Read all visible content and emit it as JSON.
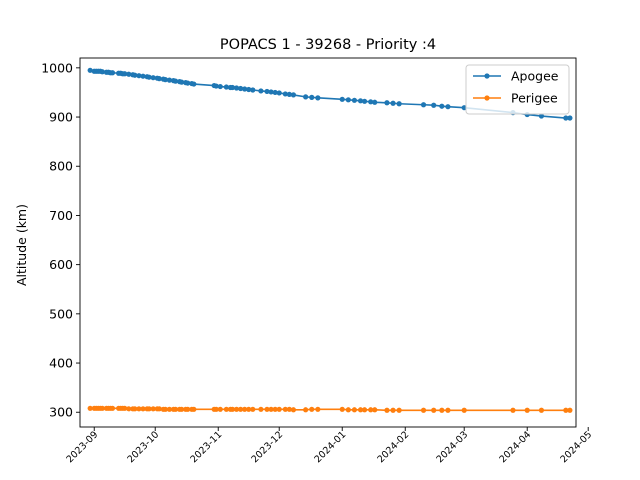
{
  "chart_data": {
    "type": "line",
    "title": "POPACS 1 - 39268 - Priority :4",
    "xlabel": "",
    "ylabel": "Altitude (km)",
    "xlim": [
      "2023-08-25",
      "2024-04-25"
    ],
    "ylim": [
      270,
      1020
    ],
    "xticks": [
      "2023-09",
      "2023-10",
      "2023-11",
      "2023-12",
      "2024-01",
      "2024-02",
      "2024-03",
      "2024-04",
      "2024-05"
    ],
    "yticks": [
      300,
      400,
      500,
      600,
      700,
      800,
      900,
      1000
    ],
    "grid": false,
    "legend": "top-right",
    "colors": {
      "Apogee": "#1f77b4",
      "Perigee": "#ff7f0e"
    },
    "marker": "circle",
    "series": [
      {
        "name": "Apogee",
        "points": [
          [
            "2023-08-30",
            995
          ],
          [
            "2023-09-01",
            993
          ],
          [
            "2023-09-02",
            993
          ],
          [
            "2023-09-03",
            993
          ],
          [
            "2023-09-04",
            993
          ],
          [
            "2023-09-05",
            992
          ],
          [
            "2023-09-07",
            991
          ],
          [
            "2023-09-08",
            991
          ],
          [
            "2023-09-09",
            990
          ],
          [
            "2023-09-10",
            990
          ],
          [
            "2023-09-13",
            989
          ],
          [
            "2023-09-14",
            989
          ],
          [
            "2023-09-15",
            988
          ],
          [
            "2023-09-16",
            988
          ],
          [
            "2023-09-18",
            987
          ],
          [
            "2023-09-20",
            986
          ],
          [
            "2023-09-21",
            985
          ],
          [
            "2023-09-23",
            984
          ],
          [
            "2023-09-25",
            983
          ],
          [
            "2023-09-27",
            982
          ],
          [
            "2023-09-28",
            981
          ],
          [
            "2023-09-30",
            980
          ],
          [
            "2023-10-02",
            979
          ],
          [
            "2023-10-03",
            978
          ],
          [
            "2023-10-05",
            977
          ],
          [
            "2023-10-06",
            976
          ],
          [
            "2023-10-08",
            975
          ],
          [
            "2023-10-10",
            974
          ],
          [
            "2023-10-11",
            973
          ],
          [
            "2023-10-13",
            972
          ],
          [
            "2023-10-14",
            971
          ],
          [
            "2023-10-16",
            970
          ],
          [
            "2023-10-17",
            969
          ],
          [
            "2023-10-19",
            968
          ],
          [
            "2023-10-20",
            967
          ],
          [
            "2023-10-30",
            964
          ],
          [
            "2023-10-31",
            963
          ],
          [
            "2023-11-02",
            962
          ],
          [
            "2023-11-05",
            961
          ],
          [
            "2023-11-07",
            960
          ],
          [
            "2023-11-08",
            960
          ],
          [
            "2023-11-10",
            959
          ],
          [
            "2023-11-12",
            958
          ],
          [
            "2023-11-14",
            957
          ],
          [
            "2023-11-16",
            956
          ],
          [
            "2023-11-18",
            955
          ],
          [
            "2023-11-22",
            953
          ],
          [
            "2023-11-25",
            952
          ],
          [
            "2023-11-27",
            951
          ],
          [
            "2023-11-29",
            950
          ],
          [
            "2023-12-01",
            949
          ],
          [
            "2023-12-04",
            947
          ],
          [
            "2023-12-06",
            946
          ],
          [
            "2023-12-08",
            945
          ],
          [
            "2023-12-14",
            941
          ],
          [
            "2023-12-17",
            940
          ],
          [
            "2023-12-20",
            939
          ],
          [
            "2024-01-01",
            936
          ],
          [
            "2024-01-04",
            935
          ],
          [
            "2024-01-07",
            934
          ],
          [
            "2024-01-10",
            933
          ],
          [
            "2024-01-12",
            932
          ],
          [
            "2024-01-15",
            931
          ],
          [
            "2024-01-17",
            930
          ],
          [
            "2024-01-23",
            929
          ],
          [
            "2024-01-26",
            928
          ],
          [
            "2024-01-29",
            927
          ],
          [
            "2024-02-10",
            925
          ],
          [
            "2024-02-15",
            924
          ],
          [
            "2024-02-19",
            922
          ],
          [
            "2024-02-22",
            921
          ],
          [
            "2024-03-01",
            919
          ],
          [
            "2024-03-25",
            909
          ],
          [
            "2024-04-01",
            905
          ],
          [
            "2024-04-08",
            902
          ],
          [
            "2024-04-20",
            898
          ],
          [
            "2024-04-22",
            898
          ]
        ]
      },
      {
        "name": "Perigee",
        "points": [
          [
            "2023-08-30",
            308
          ],
          [
            "2023-09-01",
            308
          ],
          [
            "2023-09-02",
            308
          ],
          [
            "2023-09-03",
            308
          ],
          [
            "2023-09-04",
            308
          ],
          [
            "2023-09-05",
            308
          ],
          [
            "2023-09-07",
            308
          ],
          [
            "2023-09-08",
            308
          ],
          [
            "2023-09-09",
            308
          ],
          [
            "2023-09-10",
            308
          ],
          [
            "2023-09-13",
            308
          ],
          [
            "2023-09-14",
            308
          ],
          [
            "2023-09-15",
            308
          ],
          [
            "2023-09-16",
            308
          ],
          [
            "2023-09-18",
            307
          ],
          [
            "2023-09-20",
            307
          ],
          [
            "2023-09-21",
            307
          ],
          [
            "2023-09-23",
            307
          ],
          [
            "2023-09-25",
            307
          ],
          [
            "2023-09-27",
            307
          ],
          [
            "2023-09-28",
            307
          ],
          [
            "2023-09-30",
            307
          ],
          [
            "2023-10-02",
            307
          ],
          [
            "2023-10-03",
            307
          ],
          [
            "2023-10-05",
            306
          ],
          [
            "2023-10-06",
            306
          ],
          [
            "2023-10-08",
            306
          ],
          [
            "2023-10-10",
            306
          ],
          [
            "2023-10-11",
            306
          ],
          [
            "2023-10-13",
            306
          ],
          [
            "2023-10-14",
            306
          ],
          [
            "2023-10-16",
            306
          ],
          [
            "2023-10-17",
            306
          ],
          [
            "2023-10-19",
            306
          ],
          [
            "2023-10-20",
            306
          ],
          [
            "2023-10-30",
            306
          ],
          [
            "2023-10-31",
            306
          ],
          [
            "2023-11-02",
            306
          ],
          [
            "2023-11-05",
            306
          ],
          [
            "2023-11-07",
            306
          ],
          [
            "2023-11-08",
            306
          ],
          [
            "2023-11-10",
            306
          ],
          [
            "2023-11-12",
            306
          ],
          [
            "2023-11-14",
            306
          ],
          [
            "2023-11-16",
            306
          ],
          [
            "2023-11-18",
            306
          ],
          [
            "2023-11-22",
            306
          ],
          [
            "2023-11-25",
            306
          ],
          [
            "2023-11-27",
            306
          ],
          [
            "2023-11-29",
            306
          ],
          [
            "2023-12-01",
            306
          ],
          [
            "2023-12-04",
            306
          ],
          [
            "2023-12-06",
            306
          ],
          [
            "2023-12-08",
            305
          ],
          [
            "2023-12-14",
            305
          ],
          [
            "2023-12-17",
            306
          ],
          [
            "2023-12-20",
            306
          ],
          [
            "2024-01-01",
            306
          ],
          [
            "2024-01-04",
            305
          ],
          [
            "2024-01-07",
            305
          ],
          [
            "2024-01-10",
            305
          ],
          [
            "2024-01-12",
            305
          ],
          [
            "2024-01-15",
            305
          ],
          [
            "2024-01-17",
            305
          ],
          [
            "2024-01-23",
            304
          ],
          [
            "2024-01-26",
            304
          ],
          [
            "2024-01-29",
            304
          ],
          [
            "2024-02-10",
            304
          ],
          [
            "2024-02-15",
            304
          ],
          [
            "2024-02-19",
            304
          ],
          [
            "2024-02-22",
            304
          ],
          [
            "2024-03-01",
            304
          ],
          [
            "2024-03-25",
            304
          ],
          [
            "2024-04-01",
            304
          ],
          [
            "2024-04-08",
            304
          ],
          [
            "2024-04-20",
            304
          ],
          [
            "2024-04-22",
            304
          ]
        ]
      }
    ]
  }
}
